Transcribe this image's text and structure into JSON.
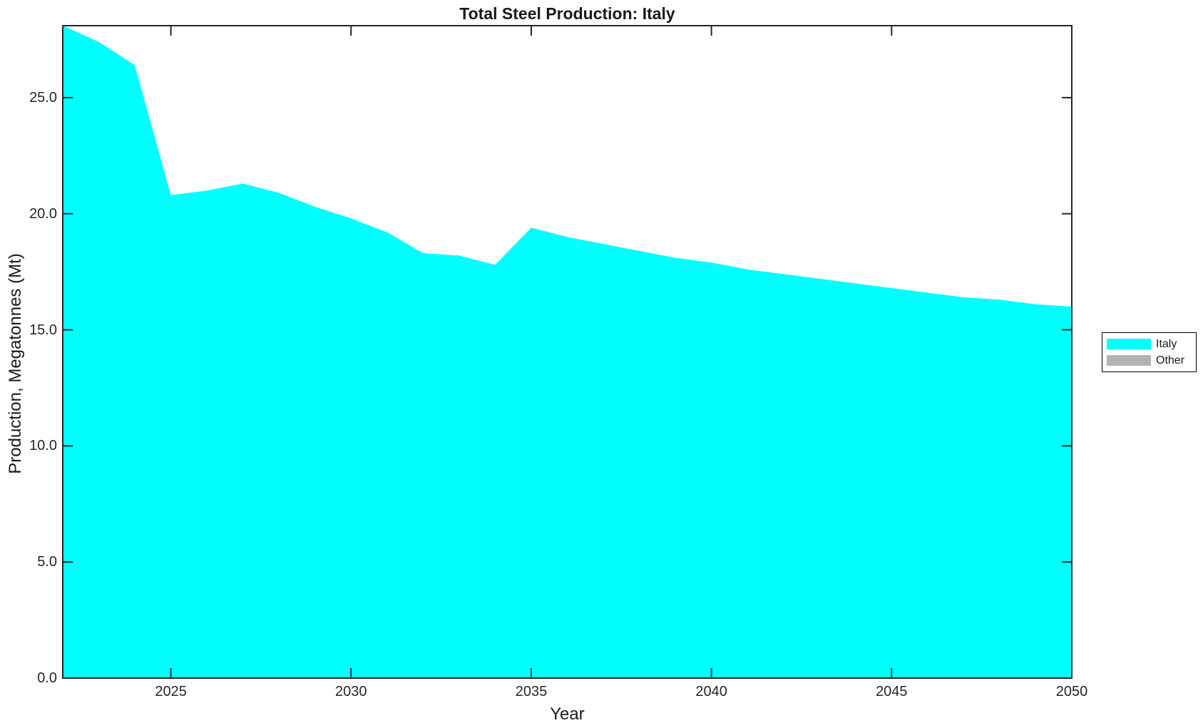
{
  "chart_data": {
    "type": "area",
    "title": "Total Steel Production: Italy",
    "xlabel": "Year",
    "ylabel": "Production, Megatonnes (Mt)",
    "x": [
      2022,
      2023,
      2024,
      2025,
      2026,
      2027,
      2028,
      2029,
      2030,
      2031,
      2032,
      2033,
      2034,
      2035,
      2036,
      2037,
      2038,
      2039,
      2040,
      2041,
      2042,
      2043,
      2044,
      2045,
      2046,
      2047,
      2048,
      2049,
      2050
    ],
    "series": [
      {
        "name": "Italy",
        "color": "#00ffff",
        "values": [
          28.1,
          27.4,
          26.4,
          20.8,
          21.0,
          21.3,
          20.9,
          20.3,
          19.8,
          19.2,
          18.3,
          18.2,
          17.8,
          19.4,
          19.0,
          18.7,
          18.4,
          18.1,
          17.9,
          17.6,
          17.4,
          17.2,
          17.0,
          16.8,
          16.6,
          16.4,
          16.3,
          16.1,
          16.0
        ]
      }
    ],
    "legend": [
      {
        "label": "Italy",
        "color": "#00ffff"
      },
      {
        "label": "Other",
        "color": "#b3b3b3"
      }
    ],
    "legend_position": "outside-right",
    "grid": false,
    "xlim": [
      2022,
      2050
    ],
    "ylim": [
      0,
      28.1
    ],
    "x_ticks": [
      2025,
      2030,
      2035,
      2040,
      2045,
      2050
    ],
    "x_tick_labels": [
      "2025",
      "2030",
      "2035",
      "2040",
      "2045",
      "2050"
    ],
    "y_ticks": [
      0,
      5,
      10,
      15,
      20,
      25
    ],
    "y_tick_labels": [
      "0.0",
      "5.0",
      "10.0",
      "15.0",
      "20.0",
      "25.0"
    ],
    "axis_color": "#262626",
    "background_color": "#ffffff"
  }
}
